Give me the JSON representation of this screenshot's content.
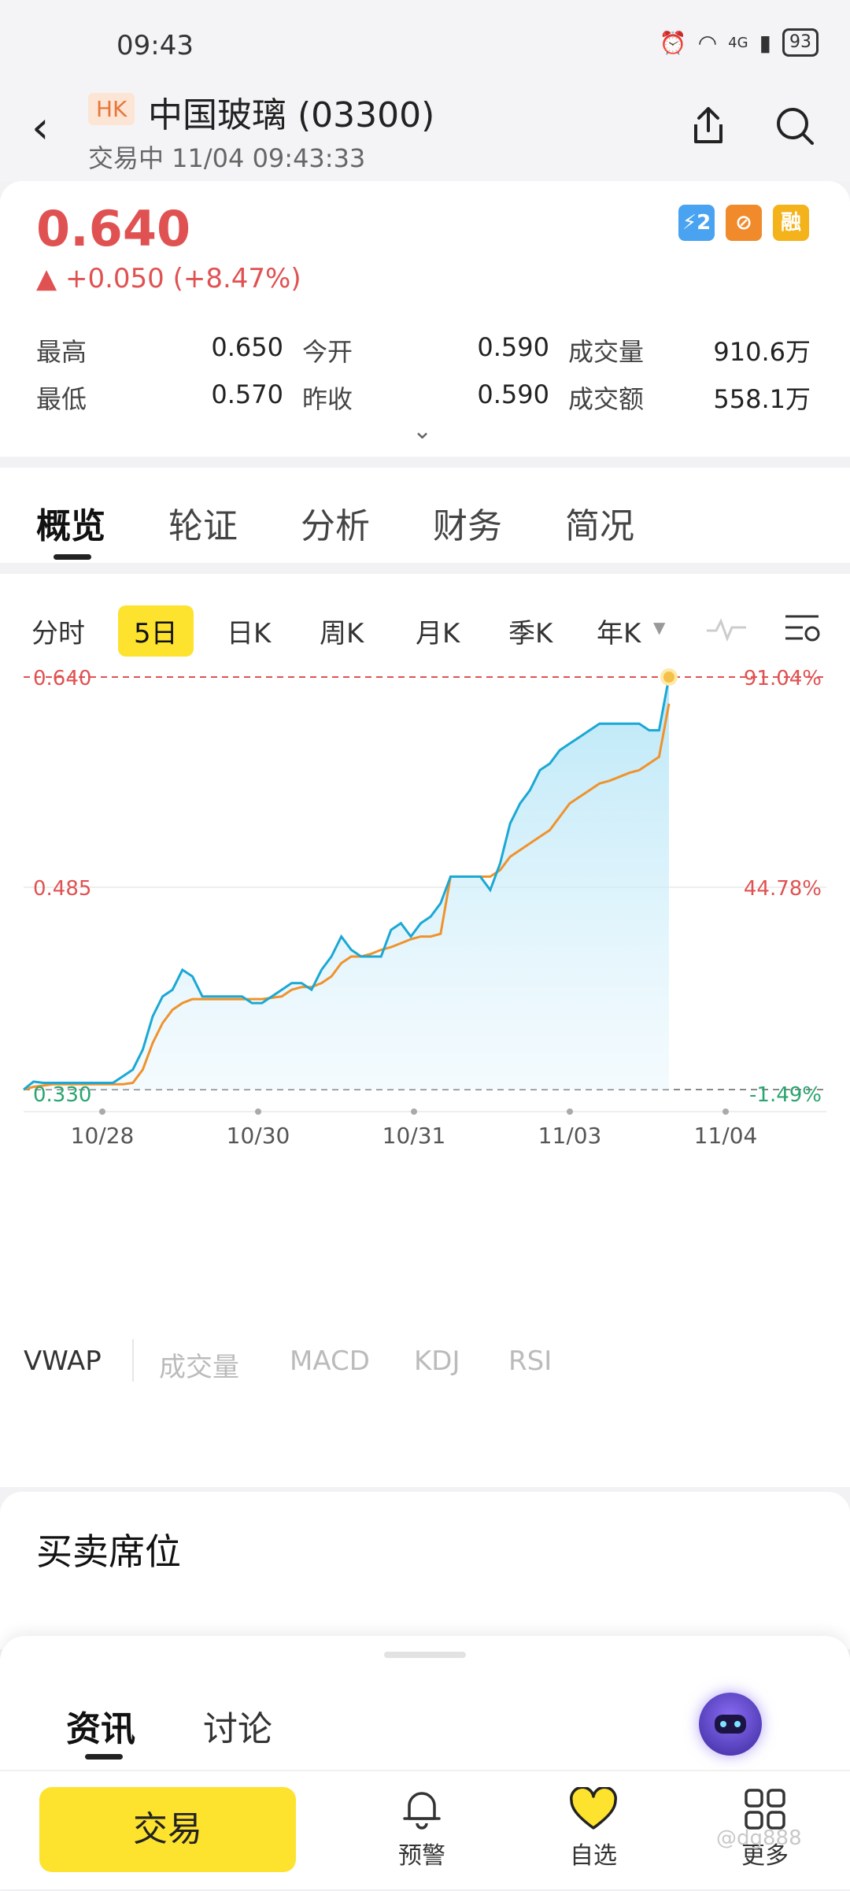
{
  "status_bar": {
    "time": "09:43",
    "battery": "93",
    "network": "4G"
  },
  "header": {
    "back_glyph": "‹",
    "market_badge": "HK",
    "title": "中国玻璃 (03300)",
    "trade_status": "交易中 11/04 09:43:33"
  },
  "quote": {
    "price": "0.640",
    "change": "▲ +0.050 (+8.47%)",
    "tags": [
      "⚡2",
      "⊘",
      "融"
    ],
    "stats": [
      {
        "label": "最高",
        "value": "0.650"
      },
      {
        "label": "今开",
        "value": "0.590"
      },
      {
        "label": "成交量",
        "value": "910.6万"
      },
      {
        "label": "最低",
        "value": "0.570"
      },
      {
        "label": "昨收",
        "value": "0.590"
      },
      {
        "label": "成交额",
        "value": "558.1万"
      }
    ],
    "expand_glyph": "⌄"
  },
  "tabs": [
    "概览",
    "轮证",
    "分析",
    "财务",
    "简况"
  ],
  "periods": [
    "分时",
    "5日",
    "日K",
    "周K",
    "月K",
    "季K",
    "年K"
  ],
  "colors": {
    "up": "#e05252",
    "down": "#2aa56f",
    "price_line": "#1aa8d4",
    "vwap_line": "#f0922b",
    "accent": "#fde22e"
  },
  "chart_data": {
    "type": "line",
    "x_ticks": [
      "10/28",
      "10/30",
      "10/31",
      "11/03",
      "11/04"
    ],
    "y_left_labels": [
      "0.640",
      "0.485",
      "0.330"
    ],
    "y_right_labels": [
      "91.04%",
      "44.78%",
      "-1.49%"
    ],
    "ylim": [
      0.33,
      0.64
    ],
    "grid": true,
    "series": [
      {
        "name": "price",
        "values": [
          0.33,
          0.336,
          0.335,
          0.335,
          0.335,
          0.335,
          0.335,
          0.335,
          0.335,
          0.335,
          0.34,
          0.345,
          0.36,
          0.385,
          0.4,
          0.405,
          0.42,
          0.415,
          0.4,
          0.4,
          0.4,
          0.4,
          0.4,
          0.395,
          0.395,
          0.4,
          0.405,
          0.41,
          0.41,
          0.405,
          0.42,
          0.43,
          0.445,
          0.435,
          0.43,
          0.43,
          0.43,
          0.45,
          0.455,
          0.445,
          0.455,
          0.46,
          0.47,
          0.49,
          0.49,
          0.49,
          0.49,
          0.48,
          0.5,
          0.53,
          0.545,
          0.555,
          0.57,
          0.575,
          0.585,
          0.59,
          0.595,
          0.6,
          0.605,
          0.605,
          0.605,
          0.605,
          0.605,
          0.6,
          0.6,
          0.64
        ]
      },
      {
        "name": "VWAP",
        "values": [
          0.33,
          0.332,
          0.333,
          0.334,
          0.334,
          0.334,
          0.334,
          0.334,
          0.334,
          0.334,
          0.334,
          0.335,
          0.345,
          0.365,
          0.38,
          0.39,
          0.395,
          0.398,
          0.398,
          0.398,
          0.398,
          0.398,
          0.398,
          0.398,
          0.398,
          0.399,
          0.4,
          0.405,
          0.407,
          0.407,
          0.41,
          0.415,
          0.425,
          0.43,
          0.43,
          0.432,
          0.435,
          0.437,
          0.44,
          0.443,
          0.445,
          0.445,
          0.447,
          0.49,
          0.49,
          0.49,
          0.49,
          0.49,
          0.495,
          0.505,
          0.51,
          0.515,
          0.52,
          0.525,
          0.535,
          0.545,
          0.55,
          0.555,
          0.56,
          0.562,
          0.565,
          0.568,
          0.57,
          0.575,
          0.58,
          0.62
        ]
      }
    ]
  },
  "indicators": [
    "VWAP",
    "成交量",
    "MACD",
    "KDJ",
    "RSI"
  ],
  "orderbook": {
    "title": "买卖席位"
  },
  "sheet": {
    "tabs": [
      "资讯",
      "讨论"
    ]
  },
  "bottom_nav": {
    "trade": "交易",
    "alert": "预警",
    "watchlist": "自选",
    "more": "更多"
  },
  "watermark": "@dg888"
}
